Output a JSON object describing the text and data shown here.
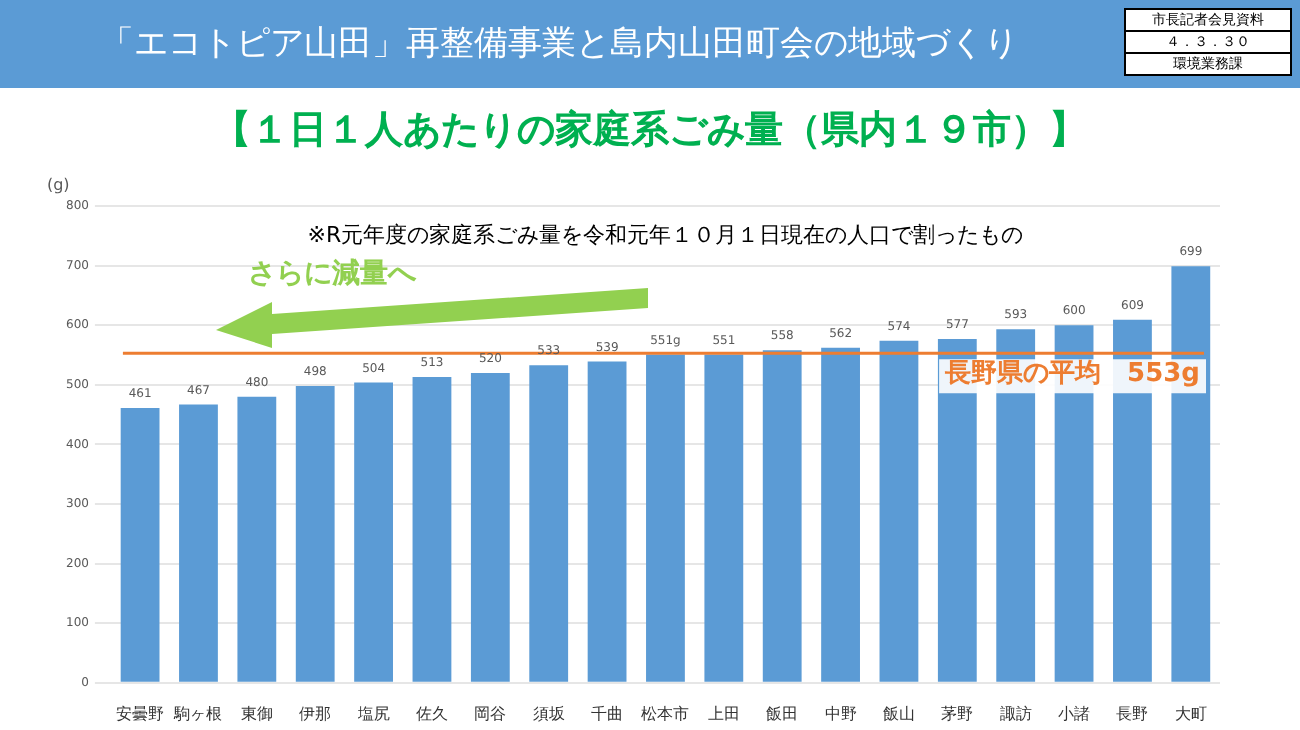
{
  "chart_data": {
    "type": "bar",
    "title": "「エコトピア山田」再整備事業と島内山田町会の地域づくり",
    "subtitle": "【１日１人あたりの家庭系ごみ量（県内１９市）】",
    "ylabel": "(g)",
    "categories": [
      "安曇野",
      "駒ヶ根",
      "東御",
      "伊那",
      "塩尻",
      "佐久",
      "岡谷",
      "須坂",
      "千曲",
      "松本市",
      "上田",
      "飯田",
      "中野",
      "飯山",
      "茅野",
      "諏訪",
      "小諸",
      "長野",
      "大町"
    ],
    "values": [
      461,
      467,
      480,
      498,
      504,
      513,
      520,
      533,
      539,
      551,
      551,
      558,
      562,
      574,
      577,
      593,
      600,
      609,
      699
    ],
    "value_labels": [
      "461",
      "467",
      "480",
      "498",
      "504",
      "513",
      "520",
      "533",
      "539",
      "551g",
      "551",
      "558",
      "562",
      "574",
      "577",
      "593",
      "600",
      "609",
      "699"
    ],
    "color": "#5b9bd5",
    "ylim": [
      0,
      800
    ],
    "yticks": [
      0,
      100,
      200,
      300,
      400,
      500,
      600,
      700,
      800
    ],
    "grid": "y",
    "legend": false,
    "ref_lines": [
      {
        "axis": "y",
        "value": 553,
        "label": "長野県の平均　553g",
        "color": "#ed7d31"
      }
    ],
    "annotations": [
      "市長記者会見資料",
      "４．３．３０",
      "環境業務課",
      "※R元年度の家庭系ごみ量を令和元年１０月１日現在の人口で割ったもの",
      "さらに減量へ"
    ]
  }
}
